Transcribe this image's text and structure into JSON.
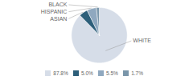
{
  "chart_data": {
    "type": "pie",
    "categories": [
      "WHITE",
      "ASIAN",
      "HISPANIC",
      "BLACK"
    ],
    "values": [
      87.8,
      5.0,
      5.5,
      1.7
    ],
    "value_labels": [
      "87.8%",
      "5.0%",
      "5.5%",
      "1.7%"
    ],
    "colors": [
      "#d6dde8",
      "#2d5f7a",
      "#8fa8bf",
      "#7a96aa"
    ],
    "legend": "bottom"
  }
}
